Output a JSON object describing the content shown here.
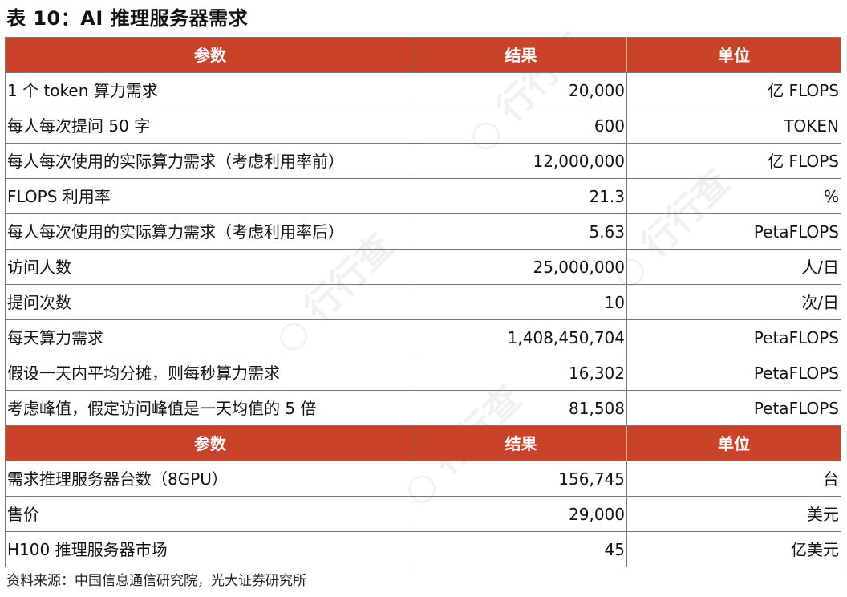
{
  "title": "表 10：AI 推理服务器需求",
  "header": {
    "param": "参数",
    "result": "结果",
    "unit": "单位"
  },
  "section1": [
    {
      "param": "1 个 token 算力需求",
      "result": "20,000",
      "unit": "亿 FLOPS"
    },
    {
      "param": "每人每次提问 50 字",
      "result": "600",
      "unit": "TOKEN"
    },
    {
      "param": "每人每次使用的实际算力需求（考虑利用率前）",
      "result": "12,000,000",
      "unit": "亿 FLOPS"
    },
    {
      "param": "FLOPS 利用率",
      "result": "21.3",
      "unit": "%"
    },
    {
      "param": "每人每次使用的实际算力需求（考虑利用率后）",
      "result": "5.63",
      "unit": "PetaFLOPS"
    },
    {
      "param": "访问人数",
      "result": "25,000,000",
      "unit": "人/日"
    },
    {
      "param": "提问次数",
      "result": "10",
      "unit": "次/日"
    },
    {
      "param": "每天算力需求",
      "result": "1,408,450,704",
      "unit": "PetaFLOPS"
    },
    {
      "param": "假设一天内平均分摊，则每秒算力需求",
      "result": "16,302",
      "unit": "PetaFLOPS"
    },
    {
      "param": "考虑峰值，假定访问峰值是一天均值的 5 倍",
      "result": "81,508",
      "unit": "PetaFLOPS"
    }
  ],
  "section2": [
    {
      "param": "需求推理服务器台数（8GPU）",
      "result": "156,745",
      "unit": "台"
    },
    {
      "param": "售价",
      "result": "29,000",
      "unit": "美元"
    },
    {
      "param": "H100 推理服务器市场",
      "result": "45",
      "unit": "亿美元"
    }
  ],
  "source": "资料来源：中国信息通信研究院，光大证券研究所"
}
